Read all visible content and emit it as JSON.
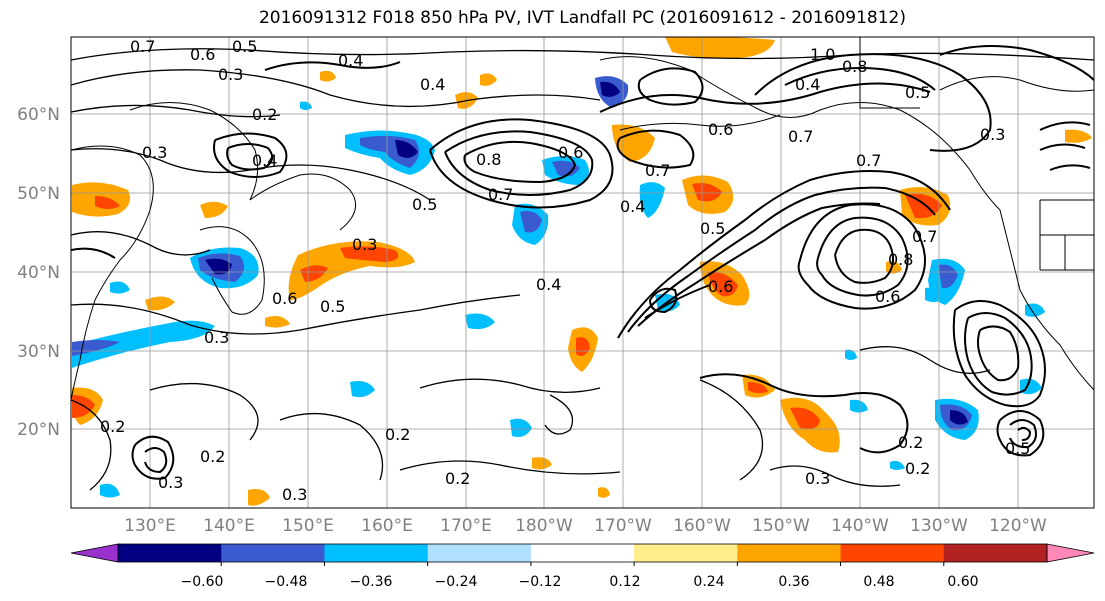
{
  "title": "2016091312 F018 850 hPa PV, IVT Landfall PC (2016091612 - 2016091812)",
  "lat_labels": [
    "60°N",
    "50°N",
    "40°N",
    "30°N",
    "20°N"
  ],
  "lon_labels": [
    "130°E",
    "140°E",
    "150°E",
    "160°E",
    "170°E",
    "180°W",
    "170°W",
    "160°W",
    "150°W",
    "140°W",
    "130°W",
    "120°W"
  ],
  "colorbar": {
    "colors": [
      "#9932cc",
      "#000080",
      "#3a5bd0",
      "#00bfff",
      "#b0e0ff",
      "#ffffff",
      "#ffec8b",
      "#ffa500",
      "#ff4500",
      "#b22222",
      "#ff88b8"
    ],
    "tick_labels": [
      "−0.60",
      "−0.48",
      "−0.36",
      "−0.24",
      "−0.12",
      "0.12",
      "0.24",
      "0.36",
      "0.48",
      "0.60"
    ]
  },
  "contour_labels": [
    {
      "text": "0.7"
    },
    {
      "text": "0.6"
    },
    {
      "text": "0.5"
    },
    {
      "text": "0.3"
    },
    {
      "text": "0.4"
    },
    {
      "text": "0.2"
    },
    {
      "text": "0.3"
    },
    {
      "text": "0.4"
    },
    {
      "text": "0.5"
    },
    {
      "text": "0.3"
    },
    {
      "text": "0.6"
    },
    {
      "text": "0.5"
    },
    {
      "text": "0.3"
    },
    {
      "text": "0.7"
    },
    {
      "text": "0.8"
    },
    {
      "text": "0.6"
    },
    {
      "text": "0.4"
    },
    {
      "text": "0.5"
    },
    {
      "text": "0.4"
    },
    {
      "text": "0.6"
    },
    {
      "text": "0.7"
    },
    {
      "text": "0.6"
    },
    {
      "text": "0.8"
    },
    {
      "text": "0.7"
    },
    {
      "text": "0.7"
    },
    {
      "text": "0.6"
    },
    {
      "text": "1.0"
    },
    {
      "text": "0.8"
    },
    {
      "text": "0.4"
    },
    {
      "text": "0.5"
    },
    {
      "text": "0.3"
    },
    {
      "text": "0.7"
    },
    {
      "text": "0.4"
    },
    {
      "text": "0.2"
    },
    {
      "text": "0.2"
    },
    {
      "text": "0.2"
    },
    {
      "text": "0.3"
    },
    {
      "text": "0.2"
    },
    {
      "text": "0.3"
    },
    {
      "text": "0.5"
    },
    {
      "text": "0.3"
    },
    {
      "text": "0.2"
    },
    {
      "text": "0.2"
    }
  ]
}
